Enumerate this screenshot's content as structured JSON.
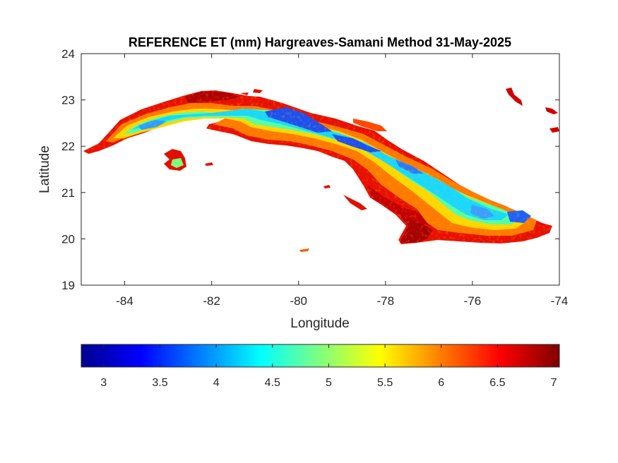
{
  "chart_data": {
    "type": "heatmap",
    "title": "REFERENCE ET (mm) Hargreaves-Samani Method  31-May-2025",
    "xlabel": "Longitude",
    "ylabel": "Latitude",
    "xlim": [
      -85,
      -74
    ],
    "ylim": [
      19,
      24
    ],
    "x_ticks": [
      -84,
      -82,
      -80,
      -78,
      -76,
      -74
    ],
    "y_ticks": [
      19,
      20,
      21,
      22,
      23,
      24
    ],
    "x_tick_labels": [
      "-84",
      "-82",
      "-80",
      "-78",
      "-76",
      "-74"
    ],
    "y_tick_labels": [
      "19",
      "20",
      "21",
      "22",
      "23",
      "24"
    ],
    "grid": false,
    "colormap": "jet",
    "colorbar": {
      "orientation": "horizontal",
      "placement": "bottom",
      "range": [
        2.8,
        7.05
      ],
      "ticks": [
        3,
        3.5,
        4,
        4.5,
        5,
        5.5,
        6,
        6.5,
        7
      ],
      "tick_labels": [
        "3",
        "3.5",
        "4",
        "4.5",
        "5",
        "5.5",
        "6",
        "6.5",
        "7"
      ]
    },
    "region": "Cuba (island of Cuba and Isla de la Juventud)",
    "value_regions": [
      {
        "area": "coastal margins",
        "value_range": [
          6.3,
          7.0
        ]
      },
      {
        "area": "western interior (Pinar del Rio)",
        "value_range": [
          4.3,
          5.5
        ]
      },
      {
        "area": "central interior near -81 to -79 lon",
        "value_range": [
          3.6,
          4.5
        ]
      },
      {
        "area": "central-eastern plains",
        "value_range": [
          5.5,
          6.5
        ]
      },
      {
        "area": "south-east coast near -77.5 lon, 20 lat",
        "value_range": [
          6.6,
          7.0
        ]
      },
      {
        "area": "eastern mountains near -75 lon",
        "value_range": [
          3.8,
          4.8
        ]
      },
      {
        "area": "Isla de la Juventud",
        "value_range": [
          4.5,
          6.5
        ]
      }
    ]
  }
}
